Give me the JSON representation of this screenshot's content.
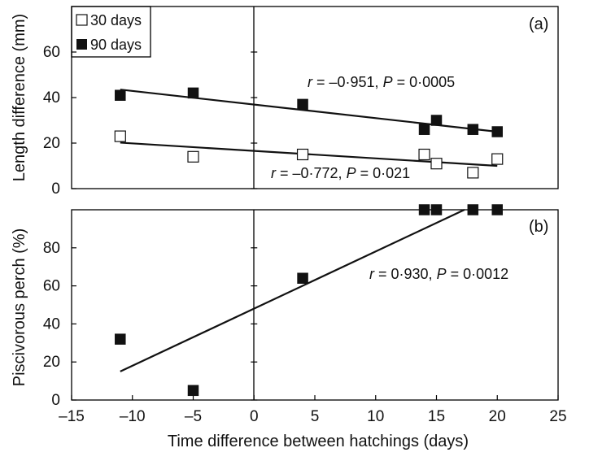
{
  "chart_data": [
    {
      "type": "scatter",
      "panel_label": "(a)",
      "ylabel": "Length difference (mm)",
      "xlim": [
        -15,
        25
      ],
      "ylim": [
        0,
        80
      ],
      "yticks": [
        0,
        20,
        40,
        60
      ],
      "series": [
        {
          "name": "30 days",
          "marker": "open-square",
          "points": [
            {
              "x": -11,
              "y": 23
            },
            {
              "x": -5,
              "y": 14
            },
            {
              "x": 4,
              "y": 15
            },
            {
              "x": 14,
              "y": 15
            },
            {
              "x": 15,
              "y": 11
            },
            {
              "x": 18,
              "y": 7
            },
            {
              "x": 20,
              "y": 13
            }
          ],
          "fit": {
            "x": [
              -11,
              20
            ],
            "y": [
              20.2,
              10.0
            ]
          },
          "annotation": {
            "r_label": "r",
            "r_value": " = –0·772, ",
            "p_label": "P",
            "p_value": " = 0·021"
          }
        },
        {
          "name": "90 days",
          "marker": "filled-square",
          "points": [
            {
              "x": -11,
              "y": 41
            },
            {
              "x": -5,
              "y": 42
            },
            {
              "x": 4,
              "y": 37
            },
            {
              "x": 14,
              "y": 26
            },
            {
              "x": 15,
              "y": 30
            },
            {
              "x": 18,
              "y": 26
            },
            {
              "x": 20,
              "y": 25
            }
          ],
          "fit": {
            "x": [
              -11,
              20
            ],
            "y": [
              43.5,
              25.0
            ]
          },
          "annotation": {
            "r_label": "r",
            "r_value": " = –0·951, ",
            "p_label": "P",
            "p_value": " = 0·0005"
          }
        }
      ],
      "legend": [
        "30 days",
        "90 days"
      ],
      "legend_placement": "top-left"
    },
    {
      "type": "scatter",
      "panel_label": "(b)",
      "ylabel": "Piscivorous perch (%)",
      "xlabel": "Time difference between hatchings (days)",
      "xlim": [
        -15,
        25
      ],
      "ylim": [
        0,
        100
      ],
      "xticks": [
        -15,
        -10,
        -5,
        0,
        5,
        10,
        15,
        20,
        25
      ],
      "xtick_labels": [
        "–15",
        "–10",
        "–5",
        "0",
        "5",
        "10",
        "15",
        "20",
        "25"
      ],
      "yticks": [
        0,
        20,
        40,
        60,
        80
      ],
      "series": [
        {
          "name": "",
          "marker": "filled-square",
          "points": [
            {
              "x": -11,
              "y": 32
            },
            {
              "x": -5,
              "y": 5
            },
            {
              "x": 4,
              "y": 64
            },
            {
              "x": 14,
              "y": 100
            },
            {
              "x": 15,
              "y": 100
            },
            {
              "x": 18,
              "y": 100
            },
            {
              "x": 20,
              "y": 100
            }
          ],
          "fit": {
            "x": [
              -11,
              17.3
            ],
            "y": [
              15,
              100
            ]
          },
          "annotation": {
            "r_label": "r",
            "r_value": " = 0·930, ",
            "p_label": "P",
            "p_value": " = 0·0012"
          }
        }
      ]
    }
  ]
}
